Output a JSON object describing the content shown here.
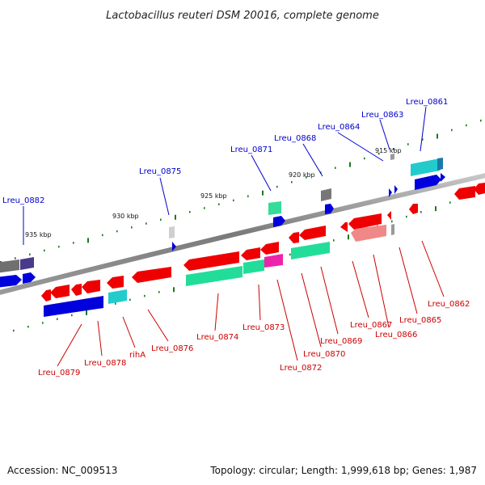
{
  "title": "Lactobacillus reuteri DSM 20016, complete genome",
  "footer": {
    "accession": "Accession: NC_009513",
    "summary": "Topology: circular; Length: 1,999,618 bp; Genes: 1,987"
  },
  "colors": {
    "backbone": "#8a8a8a",
    "tick_dot": "#1a7a1a",
    "forward_label": "#0000cc",
    "reverse_label": "#cc0000"
  },
  "kbp_markers": [
    "935 kbp",
    "930 kbp",
    "925 kbp",
    "920 kbp",
    "915 kbp"
  ],
  "forward_labels": [
    "Lreu_0882",
    "Lreu_0875",
    "Lreu_0871",
    "Lreu_0868",
    "Lreu_0864",
    "Lreu_0863",
    "Lreu_0861"
  ],
  "reverse_labels": [
    "Lreu_0879",
    "Lreu_0878",
    "rihA",
    "Lreu_0876",
    "Lreu_0874",
    "Lreu_0873",
    "Lreu_0872",
    "Lreu_0870",
    "Lreu_0869",
    "Lreu_0867",
    "Lreu_0866",
    "Lreu_0865",
    "Lreu_0862"
  ]
}
